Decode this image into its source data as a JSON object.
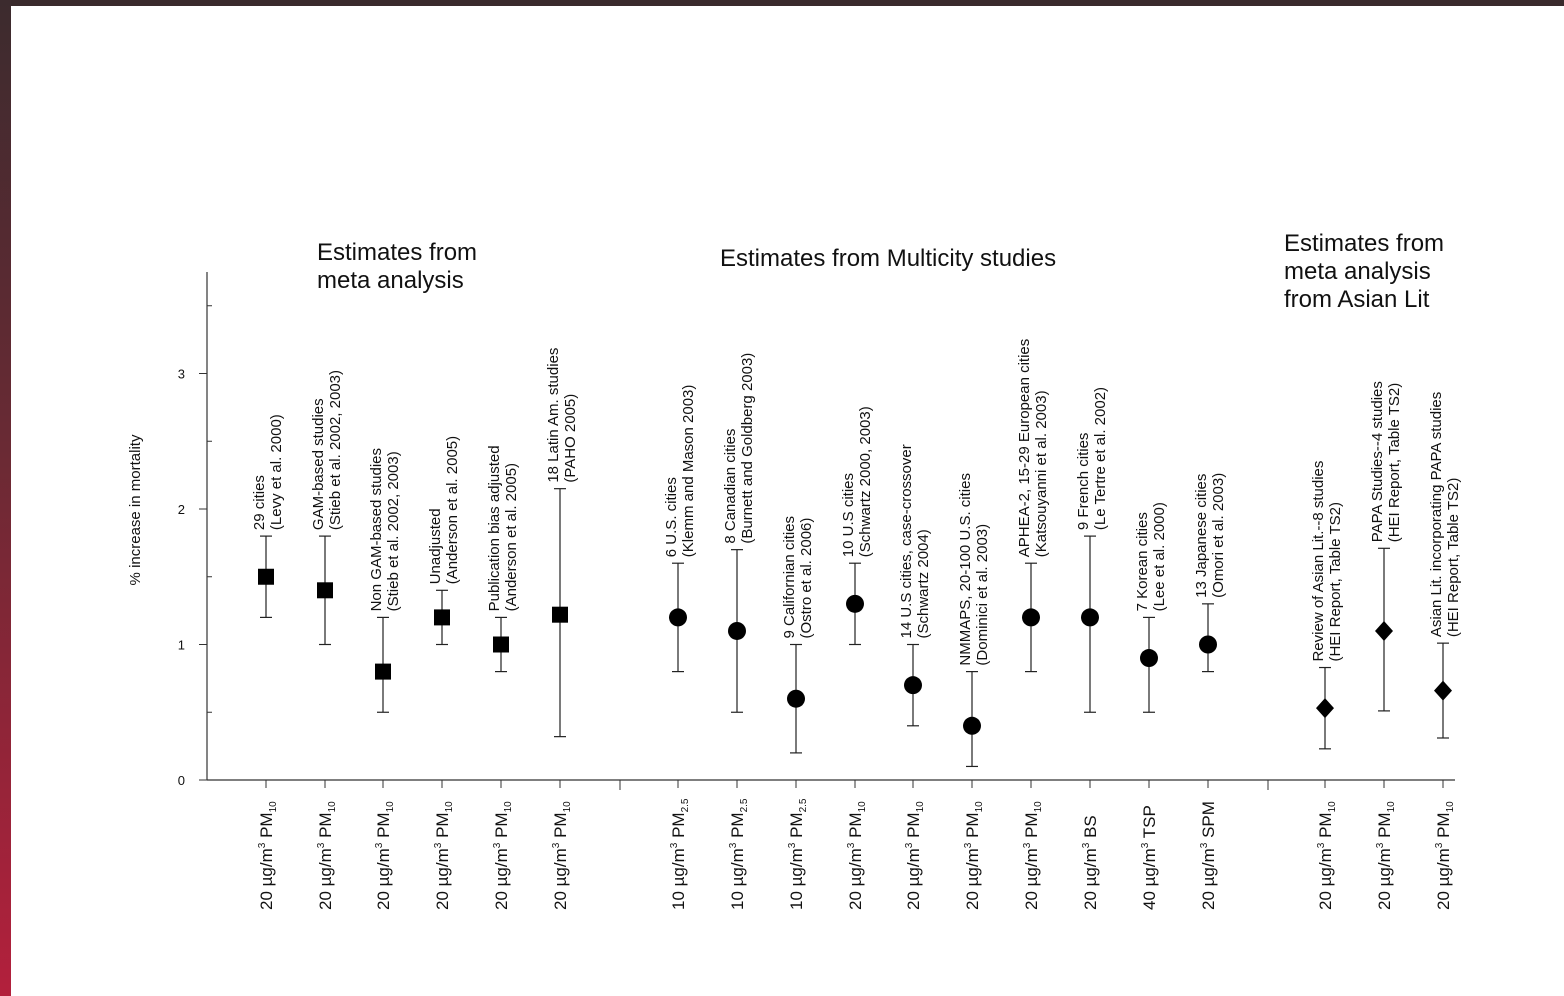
{
  "chart_data": {
    "type": "scatter",
    "y_axis": {
      "label": "% increase in mortality",
      "range": [
        0,
        3.8
      ],
      "ticks": [
        "0",
        "1",
        "2",
        "3"
      ],
      "grid": false
    },
    "groups": [
      {
        "title": [
          "Estimates from",
          "meta analysis"
        ]
      },
      {
        "title": [
          "Estimates from Multicity studies"
        ]
      },
      {
        "title": [
          "Estimates from",
          "meta analysis",
          "from Asian Lit"
        ]
      }
    ],
    "points": [
      {
        "group": 0,
        "marker": "square",
        "estimate": 1.5,
        "low": 1.2,
        "high": 1.8,
        "study": [
          "29 cities",
          "(Levy et al. 2000)"
        ],
        "x_label": {
          "pre": "20 µg/m",
          "sup": "3",
          "main": " PM",
          "sub": "10"
        }
      },
      {
        "group": 0,
        "marker": "square",
        "estimate": 1.4,
        "low": 1.0,
        "high": 1.8,
        "study": [
          "GAM-based studies",
          "(Stieb et al. 2002, 2003)"
        ],
        "x_label": {
          "pre": "20 µg/m",
          "sup": "3",
          "main": " PM",
          "sub": "10"
        }
      },
      {
        "group": 0,
        "marker": "square",
        "estimate": 0.8,
        "low": 0.5,
        "high": 1.2,
        "study": [
          "Non GAM-based studies",
          "(Stieb et al. 2002, 2003)"
        ],
        "x_label": {
          "pre": "20 µg/m",
          "sup": "3",
          "main": " PM",
          "sub": "10"
        }
      },
      {
        "group": 0,
        "marker": "square",
        "estimate": 1.2,
        "low": 1.0,
        "high": 1.4,
        "study": [
          "Unadjusted",
          "(Anderson et al. 2005)"
        ],
        "x_label": {
          "pre": "20 µg/m",
          "sup": "3",
          "main": " PM",
          "sub": "10"
        }
      },
      {
        "group": 0,
        "marker": "square",
        "estimate": 1.0,
        "low": 0.8,
        "high": 1.2,
        "study": [
          "Publication bias adjusted",
          "(Anderson et al. 2005)"
        ],
        "x_label": {
          "pre": "20 µg/m",
          "sup": "3",
          "main": " PM",
          "sub": "10"
        }
      },
      {
        "group": 0,
        "marker": "square",
        "estimate": 1.22,
        "low": 0.32,
        "high": 2.15,
        "study": [
          "18 Latin Am. studies",
          "(PAHO 2005)"
        ],
        "x_label": {
          "pre": "20 µg/m",
          "sup": "3",
          "main": " PM",
          "sub": "10"
        }
      },
      {
        "group": 1,
        "marker": "circle",
        "estimate": 1.2,
        "low": 0.8,
        "high": 1.6,
        "study": [
          "6 U.S. cities",
          "(Klemm and Mason 2003)"
        ],
        "x_label": {
          "pre": "10 µg/m",
          "sup": "3",
          "main": " PM",
          "sub": "2.5"
        }
      },
      {
        "group": 1,
        "marker": "circle",
        "estimate": 1.1,
        "low": 0.5,
        "high": 1.7,
        "study": [
          "8 Canadian cities",
          "(Burnett and Goldberg 2003)"
        ],
        "x_label": {
          "pre": "10 µg/m",
          "sup": "3",
          "main": " PM",
          "sub": "2.5"
        }
      },
      {
        "group": 1,
        "marker": "circle",
        "estimate": 0.6,
        "low": 0.2,
        "high": 1.0,
        "study": [
          "9 Californian cities",
          "(Ostro et al. 2006)"
        ],
        "x_label": {
          "pre": "10 µg/m",
          "sup": "3",
          "main": " PM",
          "sub": "2.5"
        }
      },
      {
        "group": 1,
        "marker": "circle",
        "estimate": 1.3,
        "low": 1.0,
        "high": 1.6,
        "study": [
          "10 U.S cities",
          "(Schwartz 2000, 2003)"
        ],
        "x_label": {
          "pre": "20 µg/m",
          "sup": "3",
          "main": " PM",
          "sub": "10"
        }
      },
      {
        "group": 1,
        "marker": "circle",
        "estimate": 0.7,
        "low": 0.4,
        "high": 1.0,
        "study": [
          "14 U.S cities, case-crossover",
          "(Schwartz 2004)"
        ],
        "x_label": {
          "pre": "20 µg/m",
          "sup": "3",
          "main": " PM",
          "sub": "10"
        }
      },
      {
        "group": 1,
        "marker": "circle",
        "estimate": 0.4,
        "low": 0.1,
        "high": 0.8,
        "study": [
          "NMMAPS, 20-100 U.S. cities",
          "(Dominici et al. 2003)"
        ],
        "x_label": {
          "pre": "20 µg/m",
          "sup": "3",
          "main": " PM",
          "sub": "10"
        }
      },
      {
        "group": 1,
        "marker": "circle",
        "estimate": 1.2,
        "low": 0.8,
        "high": 1.6,
        "study": [
          "APHEA-2, 15-29 European cities",
          "(Katsouyanni et al. 2003)"
        ],
        "x_label": {
          "pre": "20 µg/m",
          "sup": "3",
          "main": " PM",
          "sub": "10"
        }
      },
      {
        "group": 1,
        "marker": "circle",
        "estimate": 1.2,
        "low": 0.5,
        "high": 1.8,
        "study": [
          "9 French cities",
          "(Le Tertre et al. 2002)"
        ],
        "x_label": {
          "pre": "20 µg/m",
          "sup": "3",
          "main": " BS",
          "sub": ""
        }
      },
      {
        "group": 1,
        "marker": "circle",
        "estimate": 0.9,
        "low": 0.5,
        "high": 1.2,
        "study": [
          "7 Korean cities",
          "(Lee et al. 2000)"
        ],
        "x_label": {
          "pre": "40 µg/m",
          "sup": "3",
          "main": " TSP",
          "sub": ""
        }
      },
      {
        "group": 1,
        "marker": "circle",
        "estimate": 1.0,
        "low": 0.8,
        "high": 1.3,
        "study": [
          "13 Japanese cities",
          "(Omori et al. 2003)"
        ],
        "x_label": {
          "pre": "20 µg/m",
          "sup": "3",
          "main": " SPM",
          "sub": ""
        }
      },
      {
        "group": 2,
        "marker": "diamond",
        "estimate": 0.53,
        "low": 0.23,
        "high": 0.83,
        "study": [
          "Review of Asian Lit.--8 studies",
          "(HEI Report, Table TS2)"
        ],
        "x_label": {
          "pre": "20 µg/m",
          "sup": "3",
          "main": " PM",
          "sub": "10"
        }
      },
      {
        "group": 2,
        "marker": "diamond",
        "estimate": 1.1,
        "low": 0.51,
        "high": 1.71,
        "study": [
          "PAPA Studies--4 studies",
          "(HEI Report, Table TS2)"
        ],
        "x_label": {
          "pre": "20 µg/m",
          "sup": "3",
          "main": " PM",
          "sub": "10"
        }
      },
      {
        "group": 2,
        "marker": "diamond",
        "estimate": 0.66,
        "low": 0.31,
        "high": 1.01,
        "study": [
          "Asian Lit. incorporating PAPA studies",
          "(HEI Report, Table TS2)"
        ],
        "x_label": {
          "pre": "20 µg/m",
          "sup": "3",
          "main": " PM",
          "sub": "10"
        }
      }
    ]
  }
}
